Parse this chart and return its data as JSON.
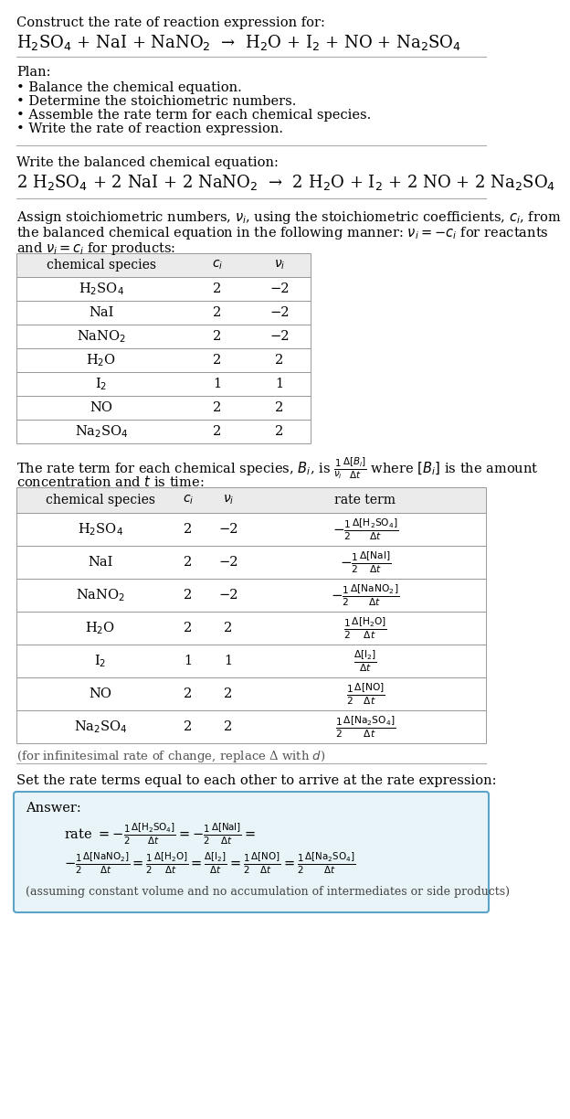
{
  "bg_color": "#ffffff",
  "title_line1": "Construct the rate of reaction expression for:",
  "reaction_unbalanced": "H$_2$SO$_4$ + NaI + NaNO$_2$  →  H$_2$O + I$_2$ + NO + Na$_2$SO$_4$",
  "plan_header": "Plan:",
  "plan_items": [
    "• Balance the chemical equation.",
    "• Determine the stoichiometric numbers.",
    "• Assemble the rate term for each chemical species.",
    "• Write the rate of reaction expression."
  ],
  "balanced_header": "Write the balanced chemical equation:",
  "reaction_balanced": "2 H$_2$SO$_4$ + 2 NaI + 2 NaNO$_2$  →  2 H$_2$O + I$_2$ + 2 NO + 2 Na$_2$SO$_4$",
  "assign_text1": "Assign stoichiometric numbers, $\\nu_i$, using the stoichiometric coefficients, $c_i$, from",
  "assign_text2": "the balanced chemical equation in the following manner: $\\nu_i = -c_i$ for reactants",
  "assign_text3": "and $\\nu_i = c_i$ for products:",
  "table1_headers": [
    "chemical species",
    "$c_i$",
    "$\\nu_i$"
  ],
  "table1_rows": [
    [
      "H$_2$SO$_4$",
      "2",
      "−2"
    ],
    [
      "NaI",
      "2",
      "−2"
    ],
    [
      "NaNO$_2$",
      "2",
      "−2"
    ],
    [
      "H$_2$O",
      "2",
      "2"
    ],
    [
      "I$_2$",
      "1",
      "1"
    ],
    [
      "NO",
      "2",
      "2"
    ],
    [
      "Na$_2$SO$_4$",
      "2",
      "2"
    ]
  ],
  "rate_text1": "The rate term for each chemical species, $B_i$, is $\\frac{1}{\\nu_i}\\frac{\\Delta[B_i]}{\\Delta t}$ where $[B_i]$ is the amount",
  "rate_text2": "concentration and $t$ is time:",
  "table2_headers": [
    "chemical species",
    "$c_i$",
    "$\\nu_i$",
    "rate term"
  ],
  "table2_rows": [
    [
      "H$_2$SO$_4$",
      "2",
      "−2",
      "$-\\frac{1}{2}\\frac{\\Delta[\\mathrm{H_2SO_4}]}{\\Delta t}$"
    ],
    [
      "NaI",
      "2",
      "−2",
      "$-\\frac{1}{2}\\frac{\\Delta[\\mathrm{NaI}]}{\\Delta t}$"
    ],
    [
      "NaNO$_2$",
      "2",
      "−2",
      "$-\\frac{1}{2}\\frac{\\Delta[\\mathrm{NaNO_2}]}{\\Delta t}$"
    ],
    [
      "H$_2$O",
      "2",
      "2",
      "$\\frac{1}{2}\\frac{\\Delta[\\mathrm{H_2O}]}{\\Delta t}$"
    ],
    [
      "I$_2$",
      "1",
      "1",
      "$\\frac{\\Delta[\\mathrm{I_2}]}{\\Delta t}$"
    ],
    [
      "NO",
      "2",
      "2",
      "$\\frac{1}{2}\\frac{\\Delta[\\mathrm{NO}]}{\\Delta t}$"
    ],
    [
      "Na$_2$SO$_4$",
      "2",
      "2",
      "$\\frac{1}{2}\\frac{\\Delta[\\mathrm{Na_2SO_4}]}{\\Delta t}$"
    ]
  ],
  "infinitesimal_note": "(for infinitesimal rate of change, replace Δ with $d$)",
  "set_rate_text": "Set the rate terms equal to each other to arrive at the rate expression:",
  "answer_box_color": "#e8f4f8",
  "answer_box_border": "#5ba3c9",
  "answer_label": "Answer:",
  "answer_line1": "rate $= -\\frac{1}{2}\\frac{\\Delta[\\mathrm{H_2SO_4}]}{\\Delta t} = -\\frac{1}{2}\\frac{\\Delta[\\mathrm{NaI}]}{\\Delta t} =$",
  "answer_line2": "$-\\frac{1}{2}\\frac{\\Delta[\\mathrm{NaNO_2}]}{\\Delta t} = \\frac{1}{2}\\frac{\\Delta[\\mathrm{H_2O}]}{\\Delta t} = \\frac{\\Delta[\\mathrm{I_2}]}{\\Delta t} = \\frac{1}{2}\\frac{\\Delta[\\mathrm{NO}]}{\\Delta t} = \\frac{1}{2}\\frac{\\Delta[\\mathrm{Na_2SO_4}]}{\\Delta t}$",
  "answer_footnote": "(assuming constant volume and no accumulation of intermediates or side products)"
}
